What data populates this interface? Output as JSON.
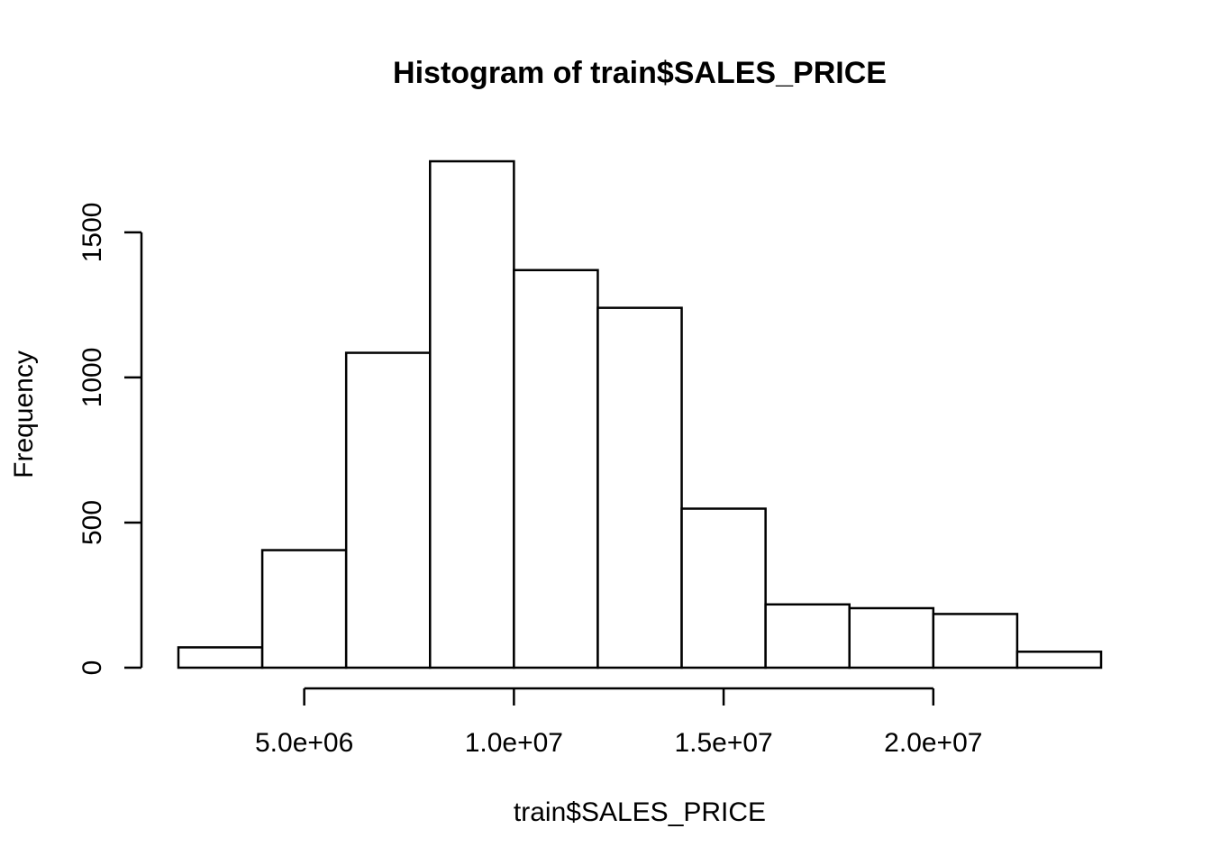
{
  "chart_data": {
    "type": "bar",
    "title": "Histogram of train$SALES_PRICE",
    "xlabel": "train$SALES_PRICE",
    "ylabel": "Frequency",
    "bins": [
      {
        "start": 2000000,
        "end": 4000000,
        "count": 70
      },
      {
        "start": 4000000,
        "end": 6000000,
        "count": 405
      },
      {
        "start": 6000000,
        "end": 8000000,
        "count": 1085
      },
      {
        "start": 8000000,
        "end": 10000000,
        "count": 1745
      },
      {
        "start": 10000000,
        "end": 12000000,
        "count": 1370
      },
      {
        "start": 12000000,
        "end": 14000000,
        "count": 1240
      },
      {
        "start": 14000000,
        "end": 16000000,
        "count": 548
      },
      {
        "start": 16000000,
        "end": 18000000,
        "count": 218
      },
      {
        "start": 18000000,
        "end": 20000000,
        "count": 205
      },
      {
        "start": 20000000,
        "end": 22000000,
        "count": 185
      },
      {
        "start": 22000000,
        "end": 24000000,
        "count": 55
      }
    ],
    "xticks": [
      {
        "value": 5000000,
        "label": "5.0e+06"
      },
      {
        "value": 10000000,
        "label": "1.0e+07"
      },
      {
        "value": 15000000,
        "label": "1.5e+07"
      },
      {
        "value": 20000000,
        "label": "2.0e+07"
      }
    ],
    "yticks": [
      {
        "value": 0,
        "label": "0"
      },
      {
        "value": 500,
        "label": "500"
      },
      {
        "value": 1000,
        "label": "1000"
      },
      {
        "value": 1500,
        "label": "1500"
      }
    ],
    "xlim": [
      2000000,
      24000000
    ],
    "ylim": [
      0,
      1745
    ],
    "grid": false
  }
}
